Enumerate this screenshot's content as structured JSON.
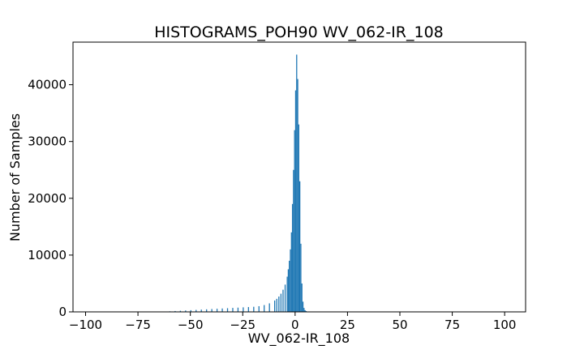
{
  "chart_data": {
    "type": "bar",
    "title": "HISTOGRAMS_POH90 WV_062-IR_108",
    "xlabel": "WV_062-IR_108",
    "ylabel": "Number of Samples",
    "xlim": [
      -106,
      110
    ],
    "ylim": [
      0,
      47500
    ],
    "x_ticks": [
      -100,
      -75,
      -50,
      -25,
      0,
      25,
      50,
      75,
      100
    ],
    "x_tick_labels": [
      "−100",
      "−75",
      "−50",
      "−25",
      "0",
      "25",
      "50",
      "75",
      "100"
    ],
    "y_ticks": [
      0,
      10000,
      20000,
      30000,
      40000
    ],
    "y_tick_labels": [
      "0",
      "10000",
      "20000",
      "30000",
      "40000"
    ],
    "bar_color": "#1f77b4",
    "bin_width": 0.5,
    "grid": false,
    "legend": "none",
    "bins": [
      {
        "x": -60.0,
        "count": 100
      },
      {
        "x": -57.5,
        "count": 150
      },
      {
        "x": -55.0,
        "count": 200
      },
      {
        "x": -52.5,
        "count": 250
      },
      {
        "x": -50.0,
        "count": 300
      },
      {
        "x": -47.5,
        "count": 350
      },
      {
        "x": -45.0,
        "count": 400
      },
      {
        "x": -42.5,
        "count": 450
      },
      {
        "x": -40.0,
        "count": 500
      },
      {
        "x": -37.5,
        "count": 550
      },
      {
        "x": -35.0,
        "count": 600
      },
      {
        "x": -32.5,
        "count": 650
      },
      {
        "x": -30.0,
        "count": 700
      },
      {
        "x": -27.5,
        "count": 750
      },
      {
        "x": -25.0,
        "count": 800
      },
      {
        "x": -22.5,
        "count": 850
      },
      {
        "x": -20.0,
        "count": 900
      },
      {
        "x": -17.5,
        "count": 1000
      },
      {
        "x": -15.0,
        "count": 1200
      },
      {
        "x": -12.5,
        "count": 1500
      },
      {
        "x": -10.0,
        "count": 2000
      },
      {
        "x": -9.0,
        "count": 2300
      },
      {
        "x": -8.0,
        "count": 2700
      },
      {
        "x": -7.0,
        "count": 3200
      },
      {
        "x": -6.0,
        "count": 3900
      },
      {
        "x": -5.0,
        "count": 4800
      },
      {
        "x": -4.0,
        "count": 6200
      },
      {
        "x": -3.5,
        "count": 7500
      },
      {
        "x": -3.0,
        "count": 9000
      },
      {
        "x": -2.5,
        "count": 11000
      },
      {
        "x": -2.0,
        "count": 14000
      },
      {
        "x": -1.5,
        "count": 19000
      },
      {
        "x": -1.0,
        "count": 25000
      },
      {
        "x": -0.5,
        "count": 32000
      },
      {
        "x": 0.0,
        "count": 39000
      },
      {
        "x": 0.5,
        "count": 45300
      },
      {
        "x": 1.0,
        "count": 41000
      },
      {
        "x": 1.5,
        "count": 33000
      },
      {
        "x": 2.0,
        "count": 23000
      },
      {
        "x": 2.5,
        "count": 12000
      },
      {
        "x": 3.0,
        "count": 5000
      },
      {
        "x": 3.5,
        "count": 1800
      },
      {
        "x": 4.0,
        "count": 700
      },
      {
        "x": 4.5,
        "count": 300
      },
      {
        "x": 5.0,
        "count": 150
      },
      {
        "x": 6.0,
        "count": 60
      }
    ]
  }
}
